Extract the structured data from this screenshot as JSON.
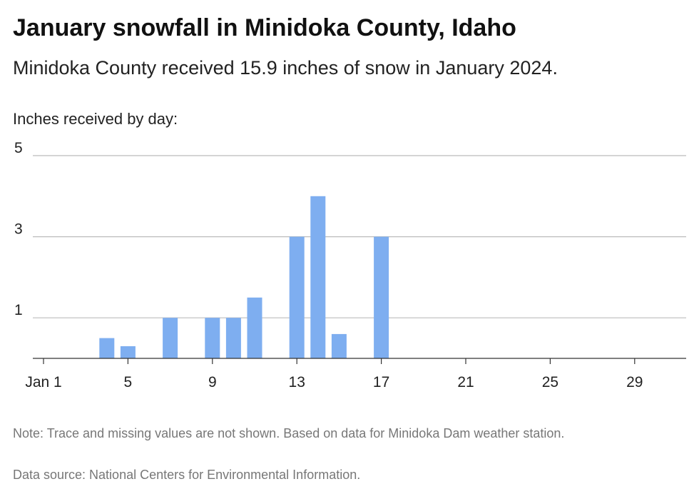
{
  "header": {
    "title": "January snowfall in Minidoka County, Idaho",
    "subtitle": "Minidoka County received 15.9 inches of snow in January 2024."
  },
  "footer": {
    "note": "Note: Trace and missing values are not shown. Based on data for Minidoka Dam weather station.",
    "source": "Data source: National Centers for Environmental Information."
  },
  "colors": {
    "bar": "#7eaef0",
    "grid": "#bbbbbb",
    "axis": "#333333"
  },
  "chart_data": {
    "type": "bar",
    "ylabel": "Inches received by day:",
    "xlabel": "",
    "x": [
      1,
      2,
      3,
      4,
      5,
      6,
      7,
      8,
      9,
      10,
      11,
      12,
      13,
      14,
      15,
      16,
      17,
      18,
      19,
      20,
      21,
      22,
      23,
      24,
      25,
      26,
      27,
      28,
      29,
      30,
      31
    ],
    "values": [
      0,
      0,
      0,
      0.5,
      0.3,
      0,
      1,
      0,
      1,
      1,
      1.5,
      0,
      3,
      4,
      0.6,
      0,
      3,
      0,
      0,
      0,
      0,
      0,
      0,
      0,
      0,
      0,
      0,
      0,
      0,
      0,
      0
    ],
    "xlim": [
      1,
      31
    ],
    "ylim": [
      0,
      5
    ],
    "x_ticks": [
      1,
      5,
      9,
      13,
      17,
      21,
      25,
      29
    ],
    "x_tick_labels": [
      "Jan 1",
      "5",
      "9",
      "13",
      "17",
      "21",
      "25",
      "29"
    ],
    "y_ticks": [
      1,
      3,
      5
    ],
    "y_tick_labels": [
      "1",
      "3",
      "5"
    ],
    "grid": true
  }
}
